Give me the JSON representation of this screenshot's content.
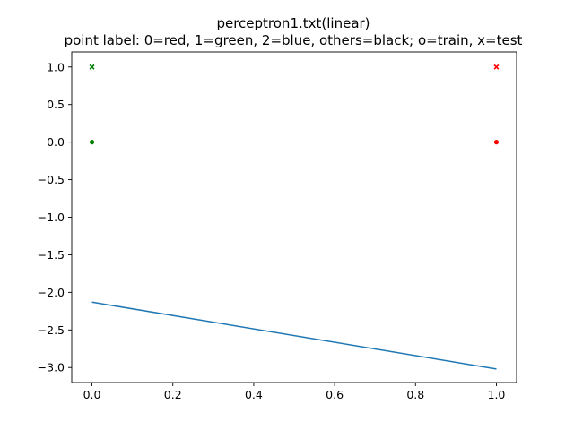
{
  "chart_data": {
    "type": "scatter",
    "title": "perceptron1.txt(linear)",
    "subtitle": "point label: 0=red, 1=green, 2=blue, others=black; o=train, x=test",
    "xlabel": "",
    "ylabel": "",
    "xlim": [
      -0.05,
      1.05
    ],
    "ylim": [
      -3.2,
      1.2
    ],
    "grid": false,
    "x_ticks": [
      0.0,
      0.2,
      0.4,
      0.6,
      0.8,
      1.0
    ],
    "x_tick_labels": [
      "0.0",
      "0.2",
      "0.4",
      "0.6",
      "0.8",
      "1.0"
    ],
    "y_ticks": [
      1.0,
      0.5,
      0.0,
      -0.5,
      -1.0,
      -1.5,
      -2.0,
      -2.5,
      -3.0
    ],
    "y_tick_labels": [
      "1.0",
      "0.5",
      "0.0",
      "−0.5",
      "−1.0",
      "−1.5",
      "−2.0",
      "−2.5",
      "−3.0"
    ],
    "points": [
      {
        "x": 0.0,
        "y": 0.0,
        "label": 1,
        "set": "train",
        "marker": "o",
        "color": "#008000"
      },
      {
        "x": 1.0,
        "y": 0.0,
        "label": 0,
        "set": "train",
        "marker": "o",
        "color": "#ff0000"
      },
      {
        "x": 0.0,
        "y": 1.0,
        "label": 1,
        "set": "test",
        "marker": "x",
        "color": "#008000"
      },
      {
        "x": 1.0,
        "y": 1.0,
        "label": 0,
        "set": "test",
        "marker": "x",
        "color": "#ff0000"
      }
    ],
    "boundary_line": {
      "x": [
        0.0,
        1.0
      ],
      "y": [
        -2.13,
        -3.02
      ],
      "color": "#1f77b4"
    }
  }
}
